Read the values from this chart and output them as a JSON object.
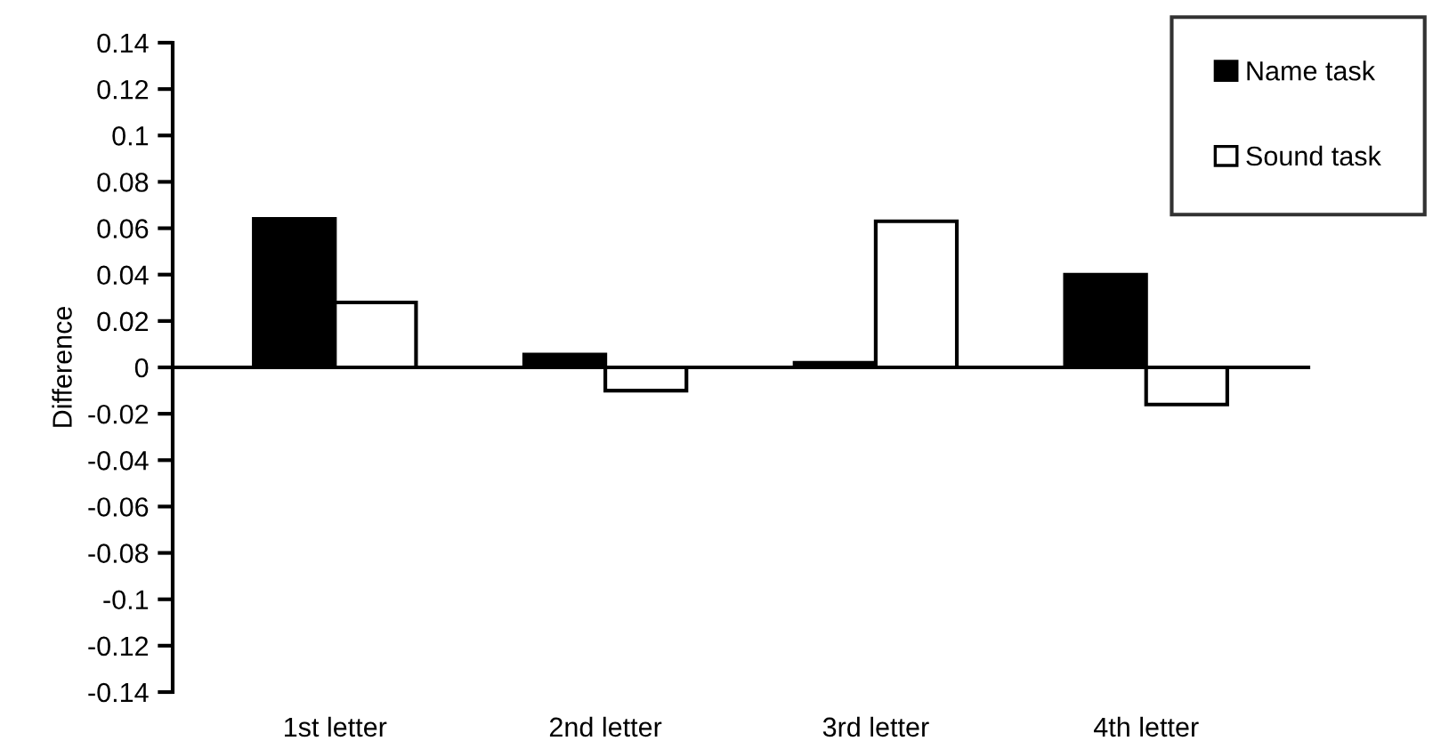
{
  "chart_data": {
    "type": "bar",
    "ylabel": "Difference",
    "categories": [
      "1st letter",
      "2nd letter",
      "3rd letter",
      "4th letter"
    ],
    "series": [
      {
        "name": "Name task",
        "color": "#000000",
        "values": [
          0.064,
          0.0055,
          0.002,
          0.04
        ]
      },
      {
        "name": "Sound task",
        "color": "#ffffff",
        "values": [
          0.028,
          -0.01,
          0.063,
          -0.016
        ]
      }
    ],
    "ylim": [
      -0.14,
      0.14
    ],
    "yticks": [
      -0.14,
      -0.12,
      {
        "value": -0.1,
        "label": "-0.1"
      },
      -0.08,
      -0.06,
      -0.04,
      -0.02,
      0,
      0.02,
      0.04,
      0.06,
      0.08,
      {
        "value": 0.1,
        "label": "0.1"
      },
      0.12,
      0.14
    ],
    "legend": "top right"
  }
}
